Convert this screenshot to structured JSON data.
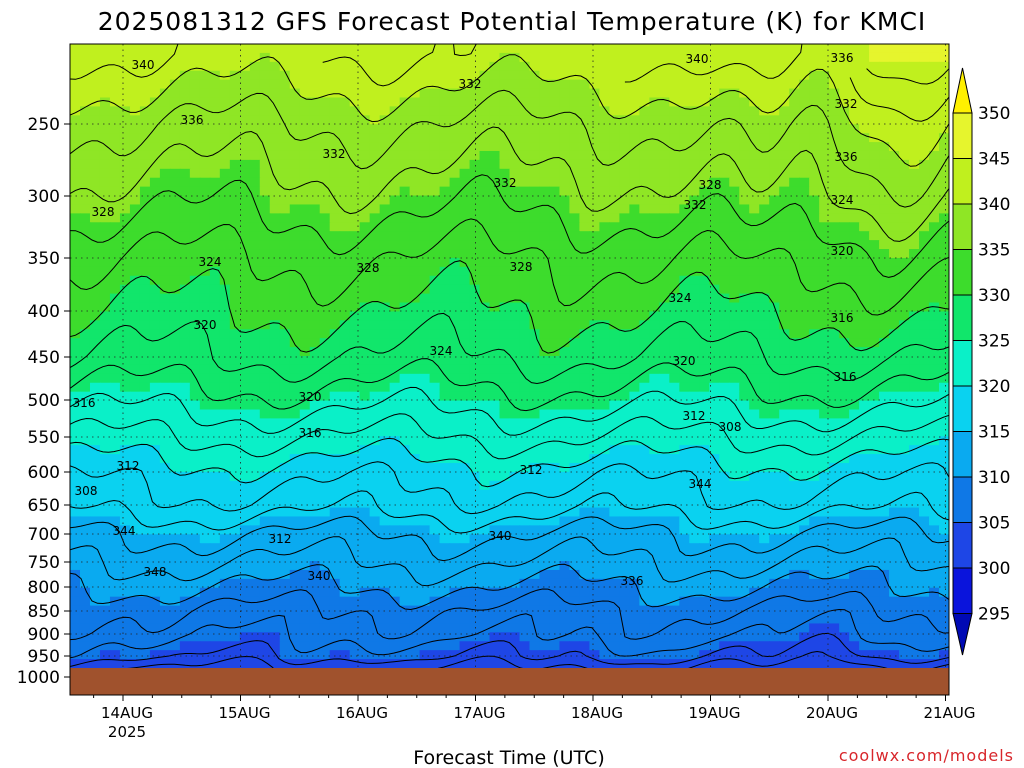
{
  "chart_data": {
    "type": "heatmap",
    "title": "2025081312 GFS Forecast Potential Temperature (K) for KMCI",
    "xlabel": "Forecast Time (UTC)",
    "ylabel": "",
    "credit": "coolwx.com/models",
    "x_ticks": [
      "14AUG",
      "15AUG",
      "16AUG",
      "17AUG",
      "18AUG",
      "19AUG",
      "20AUG",
      "21AUG"
    ],
    "x_year_label": "2025",
    "x_range_days": [
      -0.45,
      7.0
    ],
    "y_ticks": [
      250,
      300,
      350,
      400,
      450,
      500,
      550,
      600,
      650,
      700,
      750,
      800,
      850,
      900,
      950,
      1000
    ],
    "y_tick_labels": [
      "250",
      "300",
      "350",
      "400",
      "450",
      "500",
      "550",
      "600",
      "650",
      "700",
      "750",
      "800",
      "850",
      "900",
      "950",
      "1000"
    ],
    "y_range_hpa": [
      200,
      1000
    ],
    "colorbar": {
      "labels": [
        "350",
        "345",
        "340",
        "335",
        "330",
        "325",
        "320",
        "315",
        "310",
        "305",
        "300",
        "295"
      ],
      "levels": [
        350,
        345,
        340,
        335,
        330,
        325,
        320,
        315,
        310,
        305,
        300,
        295
      ],
      "colors": [
        "#fff000",
        "#e6f52d",
        "#c0f01e",
        "#8fe625",
        "#3ddc2c",
        "#11e66b",
        "#0af0c8",
        "#0ad2f0",
        "#0aaaf0",
        "#0f78e6",
        "#1e46e6",
        "#0a14dc",
        "#000ab4"
      ]
    },
    "contour_interval_K": 2,
    "contour_labels": [
      "340",
      "336",
      "332",
      "328",
      "324",
      "320",
      "316",
      "312",
      "308",
      "344",
      "348",
      "340",
      "336",
      "332",
      "332",
      "328",
      "324",
      "320",
      "316",
      "312",
      "340",
      "336",
      "332",
      "328",
      "324",
      "320",
      "316",
      "312",
      "344",
      "340",
      "336",
      "332",
      "328",
      "324",
      "320",
      "316",
      "312",
      "308"
    ],
    "surface_color": "#a0522d",
    "theta_profile": {
      "pressure_hpa": [
        200,
        250,
        300,
        350,
        400,
        450,
        500,
        550,
        600,
        650,
        700,
        750,
        800,
        850,
        900,
        950,
        985
      ],
      "theta_K": [
        342,
        338,
        335,
        332,
        330,
        328,
        325,
        322,
        319,
        317,
        314,
        312,
        310,
        308,
        307,
        305,
        302
      ]
    }
  }
}
